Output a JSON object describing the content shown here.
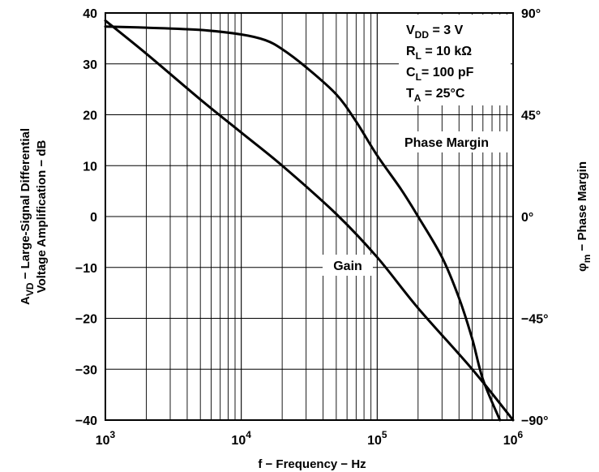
{
  "chart_data": {
    "type": "line",
    "x_scale": "log",
    "xlim": [
      1000,
      1000000
    ],
    "ylim_left": [
      -40,
      40
    ],
    "ylim_right": [
      -90,
      90
    ],
    "grid": true,
    "left_ticks": [
      {
        "value": 40,
        "label": "40"
      },
      {
        "value": 30,
        "label": "30"
      },
      {
        "value": 20,
        "label": "20"
      },
      {
        "value": 10,
        "label": "10"
      },
      {
        "value": 0,
        "label": "0"
      },
      {
        "value": -10,
        "label": "−10"
      },
      {
        "value": -20,
        "label": "−20"
      },
      {
        "value": -30,
        "label": "−30"
      },
      {
        "value": -40,
        "label": "−40"
      }
    ],
    "right_ticks": [
      {
        "value": 90,
        "label": "90°"
      },
      {
        "value": 45,
        "label": "45°"
      },
      {
        "value": 0,
        "label": "0°"
      },
      {
        "value": -45,
        "label": "−45°"
      },
      {
        "value": -90,
        "label": "−90°"
      }
    ],
    "x_ticks": [
      {
        "value": 1000,
        "base": "10",
        "exp": "3"
      },
      {
        "value": 10000,
        "base": "10",
        "exp": "4"
      },
      {
        "value": 100000,
        "base": "10",
        "exp": "5"
      },
      {
        "value": 1000000,
        "base": "10",
        "exp": "6"
      }
    ],
    "xlabel": "f − Frequency − Hz",
    "ylabel_left": {
      "line1_prefix": "A",
      "line1_sub": "VD",
      "line1_rest": " − Large-Signal Differential",
      "line2": "Voltage Amplification − dB"
    },
    "ylabel_right": {
      "prefix": "φ",
      "sub": "m",
      "rest": " − Phase Margin"
    },
    "conditions": [
      {
        "main": "V",
        "sub": "DD",
        "rest": " = 3 V"
      },
      {
        "main": "R",
        "sub": "L",
        "rest": " = 10 kΩ"
      },
      {
        "main": "C",
        "sub": "L",
        "rest": "= 100 pF"
      },
      {
        "main": "T",
        "sub": "A",
        "rest": " = 25°C"
      }
    ],
    "series": [
      {
        "name": "Gain",
        "axis": "left",
        "x": [
          1000,
          2000,
          5000,
          10000,
          20000,
          50000,
          100000,
          200000,
          500000,
          1000000
        ],
        "y": [
          38.5,
          32,
          23,
          16.5,
          10,
          0.5,
          -8,
          -18,
          -30,
          -40
        ]
      },
      {
        "name": "Phase Margin",
        "axis": "right",
        "x": [
          1000,
          2000,
          5000,
          10000,
          15000,
          20000,
          30000,
          50000,
          70000,
          100000,
          150000,
          200000,
          300000,
          400000,
          500000,
          600000,
          800000
        ],
        "y": [
          84,
          83.5,
          82.5,
          80.5,
          78,
          74,
          66,
          54,
          42,
          27,
          12,
          0,
          -18,
          -36,
          -54,
          -72,
          -90
        ]
      }
    ]
  }
}
